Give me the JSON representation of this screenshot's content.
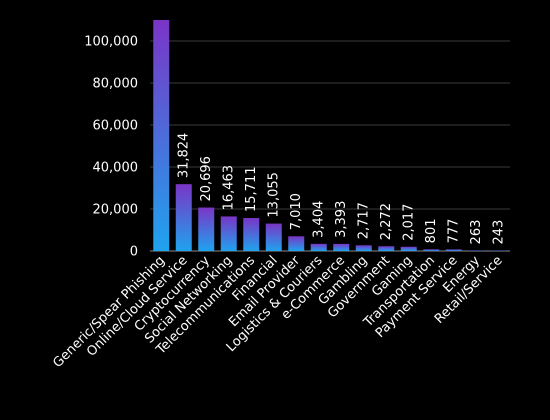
{
  "chart_data": {
    "type": "bar",
    "title": "",
    "xlabel": "",
    "ylabel": "",
    "ylim": [
      0,
      110000
    ],
    "yticks": [
      0,
      20000,
      40000,
      60000,
      80000,
      100000
    ],
    "ytick_labels": [
      "0",
      "20,000",
      "40,000",
      "60,000",
      "80,000",
      "100,000"
    ],
    "grid": true,
    "categories": [
      "Generic/Spear Phishing",
      "Online/Cloud Service",
      "Cryptocurrency",
      "Social Networking",
      "Telecommunications",
      "Financial",
      "Email Provider",
      "Logistics & Couriers",
      "e-Commerce",
      "Gambling",
      "Government",
      "Gaming",
      "Transportation",
      "Payment Service",
      "Energy",
      "Retail/Service"
    ],
    "values": [
      110000,
      31824,
      20696,
      16463,
      15711,
      13055,
      7010,
      3404,
      3393,
      2717,
      2272,
      2017,
      801,
      777,
      263,
      243
    ],
    "data_labels": [
      "",
      "31,824",
      "20,696",
      "16,463",
      "15,711",
      "13,055",
      "7,010",
      "3,404",
      "3,393",
      "2,717",
      "2,272",
      "2,017",
      "801",
      "777",
      "263",
      "243"
    ],
    "colors": {
      "bar_top": "#7a35c6",
      "bar_bottom": "#1fa3ee",
      "background": "#000000",
      "text": "#ffffff",
      "grid": "#3a3a3a"
    }
  }
}
